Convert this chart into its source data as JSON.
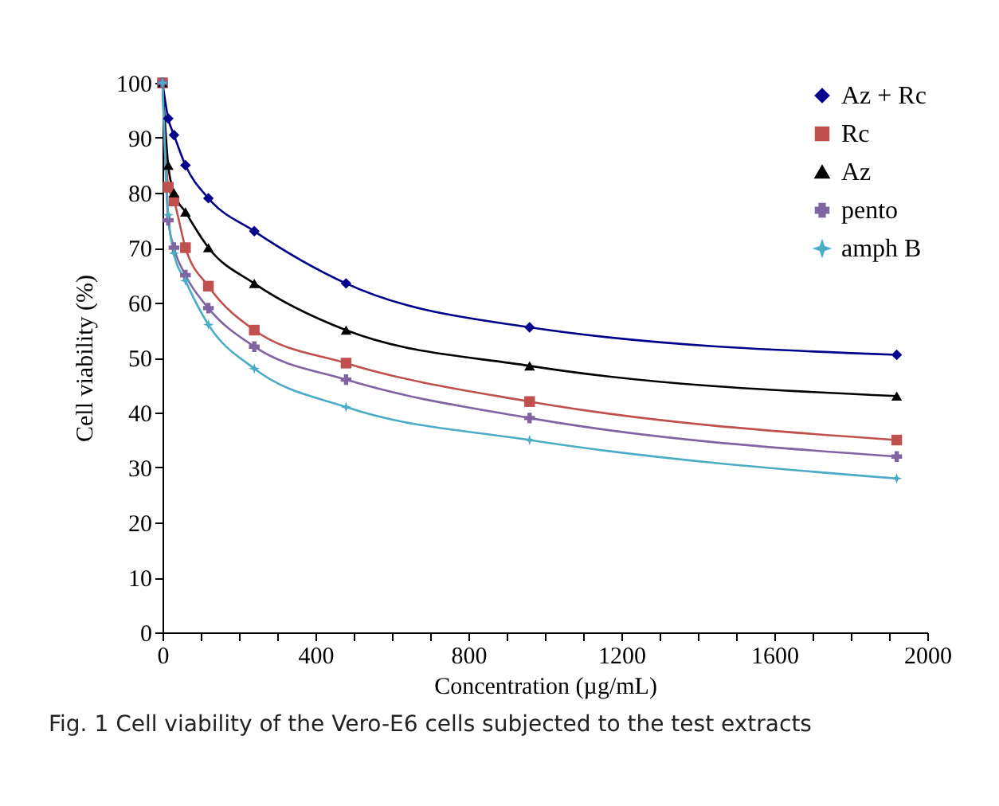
{
  "chart_data": {
    "type": "line",
    "title": "Fig. 1  Cell viability of the Vero-E6 cells subjected to the test extracts",
    "xlabel": "Concentration (µg/mL)",
    "ylabel": "Cell viability (%)",
    "x": [
      0,
      15,
      30,
      60,
      120,
      240,
      480,
      960,
      1920
    ],
    "series": [
      {
        "name": "Az + Rc",
        "color": "#00008b",
        "marker": "diamond",
        "values": [
          100,
          93.5,
          90.5,
          85,
          79,
          73,
          63.5,
          55.5,
          50.5
        ]
      },
      {
        "name": "Rc",
        "color": "#c0504d",
        "marker": "square",
        "values": [
          100,
          81,
          78.5,
          70,
          63,
          55,
          49,
          42,
          35
        ]
      },
      {
        "name": "Az",
        "color": "#000000",
        "marker": "triangle",
        "values": [
          100,
          85,
          80,
          76.5,
          70,
          63.5,
          55,
          48.5,
          43
        ]
      },
      {
        "name": "pento",
        "color": "#8064a2",
        "marker": "cross",
        "values": [
          100,
          75,
          70,
          65,
          59,
          52,
          46,
          39,
          32
        ]
      },
      {
        "name": "amph B",
        "color": "#4bacc6",
        "marker": "star",
        "values": [
          100,
          76,
          69,
          64,
          56,
          48,
          41,
          35,
          28
        ]
      }
    ],
    "xlim": [
      0,
      2000
    ],
    "ylim": [
      0,
      100
    ],
    "xticks": [
      0,
      {
        "value": 100,
        "label": null
      },
      {
        "value": 200,
        "label": null
      },
      {
        "value": 300,
        "label": null
      },
      400,
      {
        "value": 500,
        "label": null
      },
      {
        "value": 600,
        "label": null
      },
      {
        "value": 700,
        "label": null
      },
      800,
      {
        "value": 900,
        "label": null
      },
      {
        "value": 1000,
        "label": null
      },
      {
        "value": 1100,
        "label": null
      },
      1200,
      {
        "value": 1300,
        "label": null
      },
      {
        "value": 1400,
        "label": null
      },
      {
        "value": 1500,
        "label": null
      },
      1600,
      {
        "value": 1700,
        "label": null
      },
      {
        "value": 1800,
        "label": null
      },
      {
        "value": 1900,
        "label": null
      },
      2000
    ],
    "yticks": [
      0,
      10,
      20,
      30,
      40,
      50,
      60,
      70,
      80,
      90,
      100
    ],
    "grid": false,
    "legend": "top right",
    "line_style": "solid"
  }
}
